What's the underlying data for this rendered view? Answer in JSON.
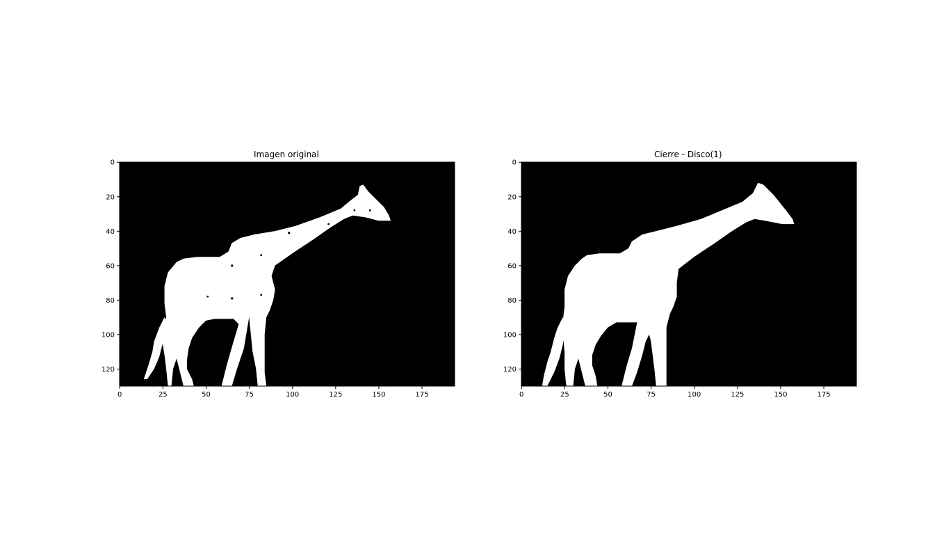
{
  "figure": {
    "panels": [
      {
        "title": "Imagen original",
        "image_size": {
          "width": 194,
          "height": 130
        },
        "xticks": [
          "0",
          "25",
          "50",
          "75",
          "100",
          "125",
          "150",
          "175"
        ],
        "yticks": [
          "0",
          "20",
          "40",
          "60",
          "80",
          "100",
          "120"
        ],
        "content": "white giraffe silhouette on black background with small black speckle holes",
        "background_color": "#000000",
        "foreground_color": "#ffffff"
      },
      {
        "title": "Cierre - Disco(1)",
        "image_size": {
          "width": 194,
          "height": 130
        },
        "xticks": [
          "0",
          "25",
          "50",
          "75",
          "100",
          "125",
          "150",
          "175"
        ],
        "yticks": [
          "0",
          "20",
          "40",
          "60",
          "80",
          "100",
          "120"
        ],
        "content": "white giraffe silhouette after morphological closing, holes filled, jagged edges",
        "background_color": "#000000",
        "foreground_color": "#ffffff"
      }
    ]
  }
}
